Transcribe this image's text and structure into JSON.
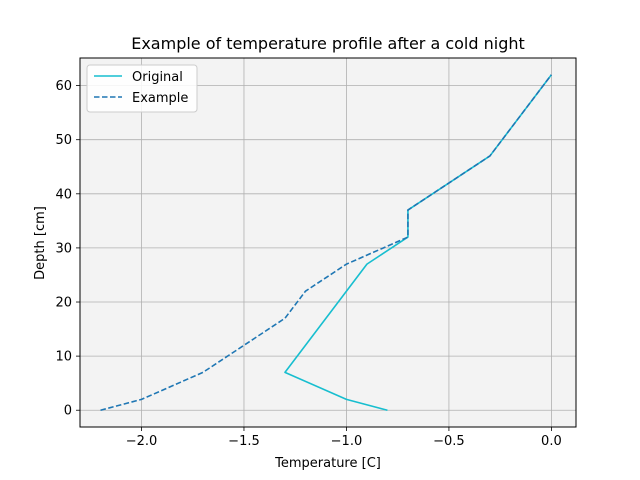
{
  "chart_data": {
    "type": "line",
    "title": "Example of temperature profile after a cold night",
    "xlabel": "Temperature [C]",
    "ylabel": "Depth [cm]",
    "xlim": [
      -2.3,
      0.12
    ],
    "ylim": [
      -3.1,
      65.1
    ],
    "xticks": [
      -2.0,
      -1.5,
      -1.0,
      -0.5,
      0.0
    ],
    "xtick_labels": [
      "−2.0",
      "−1.5",
      "−1.0",
      "−0.5",
      "0.0"
    ],
    "yticks": [
      0,
      10,
      20,
      30,
      40,
      50,
      60
    ],
    "ytick_labels": [
      "0",
      "10",
      "20",
      "30",
      "40",
      "50",
      "60"
    ],
    "grid": true,
    "background": "#f3f3f3",
    "legend_position": "upper-left",
    "series": [
      {
        "name": "Original",
        "color": "#17becf",
        "style": "solid",
        "points": [
          [
            -0.8,
            0
          ],
          [
            -1.0,
            2
          ],
          [
            -1.3,
            7
          ],
          [
            -0.9,
            27
          ],
          [
            -0.7,
            32
          ],
          [
            -0.7,
            37
          ],
          [
            -0.3,
            47
          ],
          [
            0.0,
            62
          ]
        ]
      },
      {
        "name": "Example",
        "color": "#1f77b4",
        "style": "dashed",
        "points": [
          [
            -2.2,
            0
          ],
          [
            -2.0,
            2
          ],
          [
            -1.7,
            7
          ],
          [
            -1.5,
            12
          ],
          [
            -1.3,
            17
          ],
          [
            -1.2,
            22
          ],
          [
            -1.0,
            27
          ],
          [
            -0.7,
            32
          ],
          [
            -0.7,
            37
          ],
          [
            -0.3,
            47
          ],
          [
            0.0,
            62
          ]
        ]
      }
    ]
  }
}
